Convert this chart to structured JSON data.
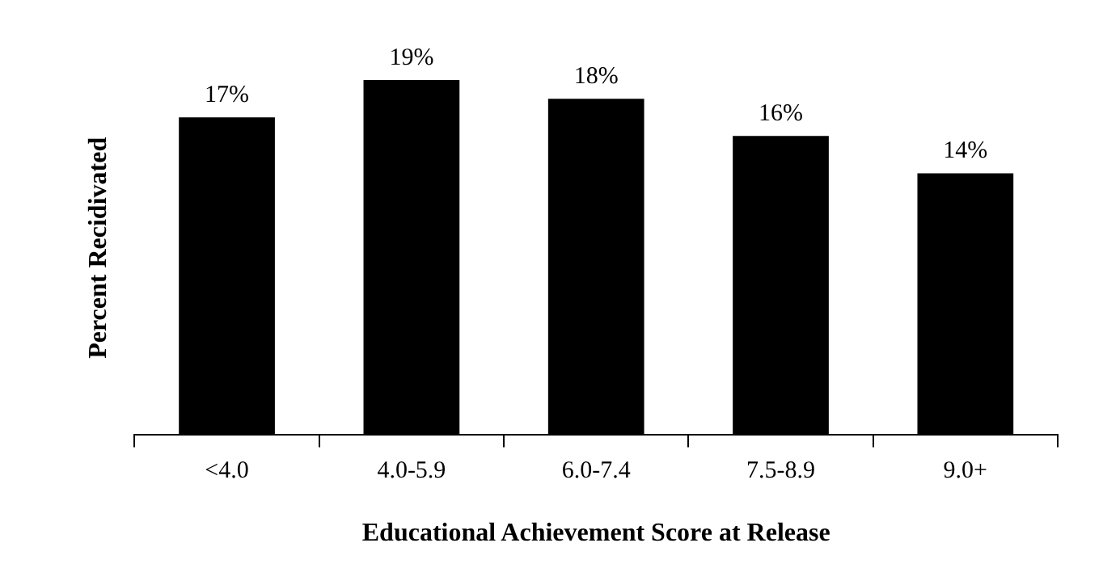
{
  "chart_data": {
    "type": "bar",
    "xlabel": "Educational Achievement Score at Release",
    "ylabel": "Percent Recidivated",
    "categories": [
      "<4.0",
      "4.0-5.9",
      "6.0-7.4",
      "7.5-8.9",
      "9.0+"
    ],
    "values": [
      17,
      19,
      18,
      16,
      14
    ],
    "value_labels": [
      "17%",
      "19%",
      "18%",
      "16%",
      "14%"
    ],
    "color": "#000000",
    "grid": false,
    "legend": false
  }
}
